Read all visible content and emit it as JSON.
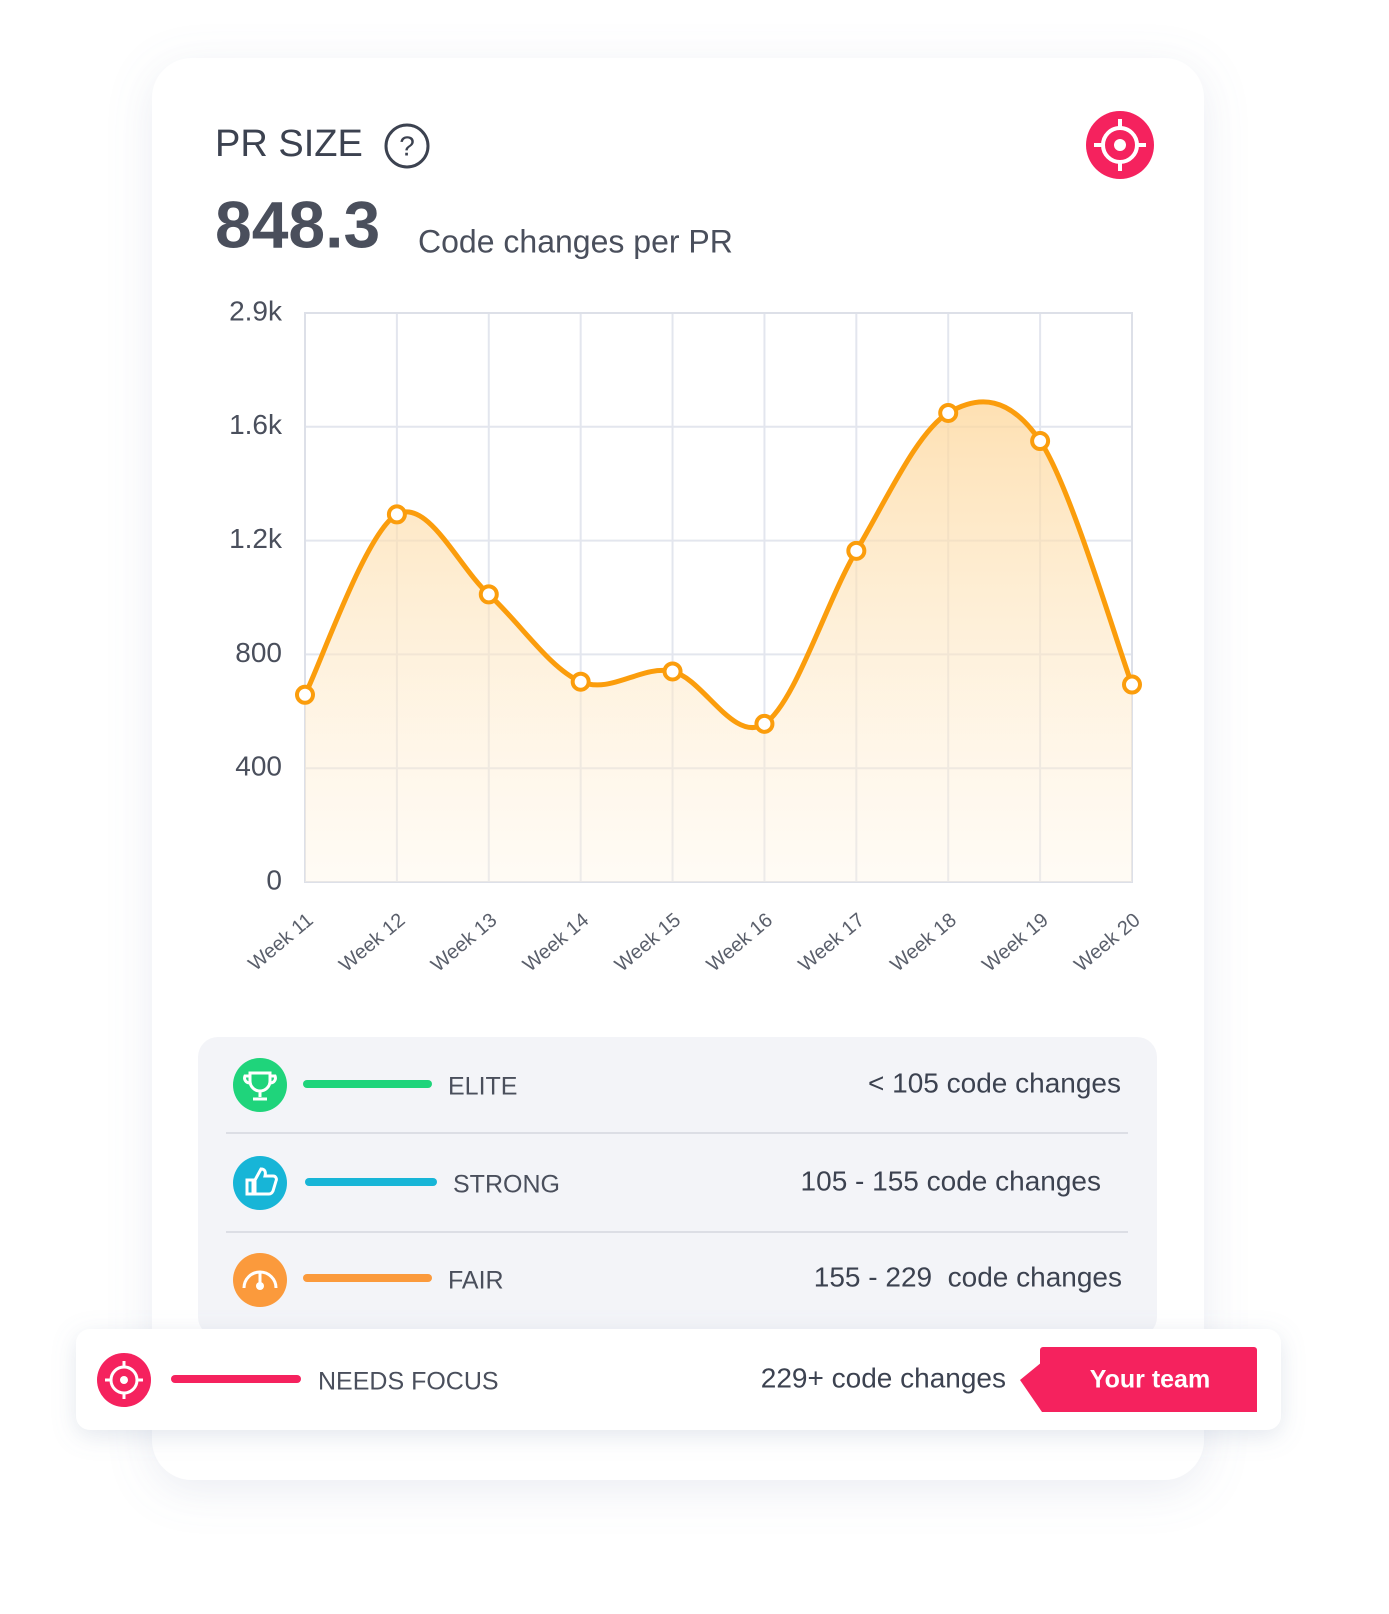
{
  "header": {
    "title": "PR SIZE",
    "help": "?"
  },
  "headline": {
    "value": "848.3",
    "unit": "Code changes per PR"
  },
  "chart_data": {
    "type": "line",
    "categories": [
      "Week 11",
      "Week 12",
      "Week 13",
      "Week 14",
      "Week 15",
      "Week 16",
      "Week 17",
      "Week 18",
      "Week 19",
      "Week 20"
    ],
    "values": [
      658,
      1292,
      1011,
      704,
      740,
      556,
      1164,
      1758,
      1550,
      694
    ],
    "color": "#fb9d0c",
    "ylim": [
      0,
      2900
    ],
    "yticks": [
      0,
      400,
      800,
      {
        "value": 1200,
        "label": "1.2k"
      },
      {
        "value": 1600,
        "label": "1.6k"
      },
      {
        "value": 2900,
        "label": "2.9k"
      }
    ],
    "grid": true
  },
  "legend": {
    "rows": [
      {
        "label": "ELITE",
        "range": "< 105 code changes",
        "color": "#1fd47b"
      },
      {
        "label": "STRONG",
        "range": "105 - 155 code changes",
        "color": "#17b5d7"
      },
      {
        "label": "FAIR",
        "range": "155 - 229  code changes",
        "color": "#fb9a3c"
      },
      {
        "label": "NEEDS FOCUS",
        "range": "229+ code changes",
        "color": "#f5225e"
      }
    ],
    "badge": "Your team"
  }
}
